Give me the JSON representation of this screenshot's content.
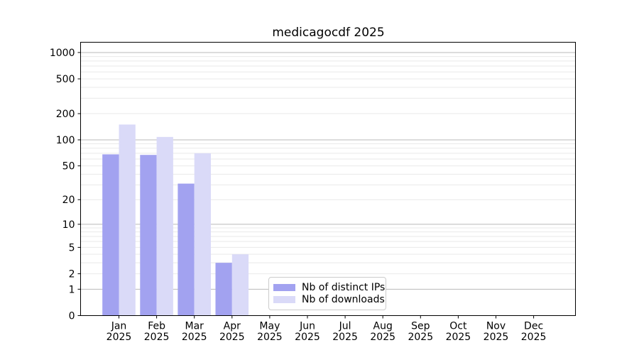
{
  "chart_data": {
    "type": "bar",
    "title": "medicagocdf 2025",
    "year": "2025",
    "categories": [
      "Jan",
      "Feb",
      "Mar",
      "Apr",
      "May",
      "Jun",
      "Jul",
      "Aug",
      "Sep",
      "Oct",
      "Nov",
      "Dec"
    ],
    "series": [
      {
        "name": "Nb of distinct IPs",
        "key": "distinct-ips",
        "color": "#a2a2f0",
        "values": [
          68,
          67,
          31,
          3,
          0,
          0,
          0,
          0,
          0,
          0,
          0,
          0
        ]
      },
      {
        "name": "Nb of downloads",
        "key": "downloads",
        "color": "#dadaf8",
        "values": [
          150,
          108,
          70,
          4,
          0,
          0,
          0,
          0,
          0,
          0,
          0,
          0
        ]
      }
    ],
    "xlabel": "",
    "ylabel": "",
    "y_scale": "log10(1+x)",
    "y_ticks": [
      0,
      1,
      2,
      5,
      10,
      20,
      50,
      100,
      200,
      500,
      1000
    ],
    "ylim": [
      0,
      1300
    ],
    "grid": {
      "major_at": [
        1,
        10,
        100,
        1000
      ],
      "minor_mantissas": [
        2,
        3,
        4,
        5,
        6,
        7,
        8,
        9
      ],
      "minor_decades": [
        1,
        10,
        100
      ]
    },
    "legend_position": "lower center (inside axes)",
    "colors": {
      "grid_major": "#b9b9b9",
      "grid_minor": "#e9e9e9",
      "spine": "#000000",
      "tick_text": "#000000"
    }
  }
}
